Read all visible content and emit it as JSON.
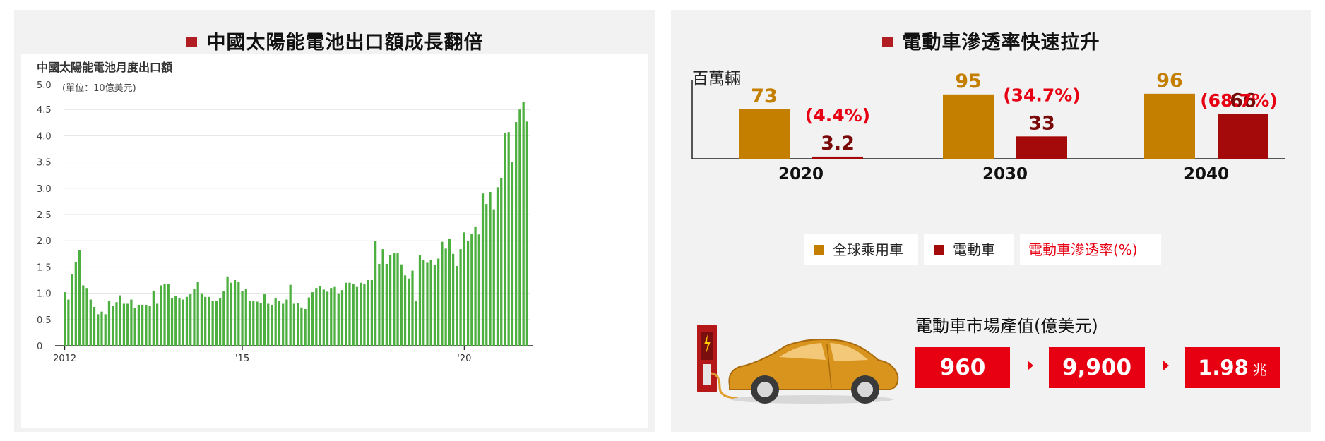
{
  "left_panel": {
    "title": "中國太陽能電池出口額成長翻倍"
  },
  "right_panel": {
    "title": "電動車滲透率快速拉升",
    "unit": "百萬輛",
    "legend": [
      "全球乘用車",
      "電動車",
      "電動車滲透率(%)"
    ],
    "market_title": "電動車市場產值(億美元)",
    "market_values": [
      "960",
      "9,900",
      "1.98"
    ],
    "market_unit_suffix": "兆"
  },
  "colors": {
    "accent_red": "#e60012",
    "dark_red": "#a50a0a",
    "gold": "#c47f00",
    "bar_green": "#4caf3f",
    "title_square": "#b01e23"
  },
  "chart_data": [
    {
      "type": "bar",
      "title": "中國太陽能電池月度出口額",
      "ylabel": "(單位：10億美元)",
      "yticks": [
        "0",
        "0.5",
        "1.0",
        "1.5",
        "2.0",
        "2.5",
        "3.0",
        "3.5",
        "4.0",
        "4.5",
        "5.0"
      ],
      "ylim": [
        0,
        5.0
      ],
      "xtick_labels": [
        "2012",
        "'15",
        "'20"
      ],
      "xtick_positions": [
        0,
        48,
        108
      ],
      "grid": true,
      "values": [
        1.02,
        0.88,
        1.37,
        1.6,
        1.82,
        1.15,
        1.1,
        0.88,
        0.74,
        0.6,
        0.65,
        0.6,
        0.85,
        0.76,
        0.83,
        0.96,
        0.8,
        0.8,
        0.88,
        0.72,
        0.78,
        0.78,
        0.78,
        0.76,
        1.05,
        0.8,
        1.15,
        1.17,
        1.17,
        0.9,
        0.95,
        0.9,
        0.88,
        0.93,
        0.98,
        1.08,
        1.22,
        1.0,
        0.93,
        0.93,
        0.85,
        0.85,
        0.9,
        1.04,
        1.32,
        1.2,
        1.25,
        1.22,
        1.04,
        1.08,
        0.86,
        0.86,
        0.84,
        0.82,
        0.98,
        0.8,
        0.78,
        0.9,
        0.86,
        0.8,
        0.88,
        1.16,
        0.8,
        0.82,
        0.73,
        0.7,
        0.92,
        1.02,
        1.1,
        1.14,
        1.07,
        1.03,
        1.1,
        1.12,
        1.0,
        1.06,
        1.2,
        1.2,
        1.17,
        1.12,
        1.2,
        1.17,
        1.25,
        1.25,
        2.0,
        1.56,
        1.84,
        1.56,
        1.73,
        1.76,
        1.76,
        1.55,
        1.34,
        1.28,
        1.43,
        0.85,
        1.72,
        1.63,
        1.58,
        1.64,
        1.54,
        1.66,
        1.98,
        1.85,
        2.03,
        1.75,
        1.52,
        1.84,
        2.16,
        2.0,
        2.13,
        2.26,
        2.12,
        2.9,
        2.7,
        2.93,
        2.6,
        3.02,
        3.2,
        4.05,
        4.07,
        3.5,
        4.26,
        4.5,
        4.65,
        4.27
      ]
    },
    {
      "type": "bar",
      "title": "電動車滲透率快速拉升",
      "ylabel": "百萬輛",
      "categories": [
        "2020",
        "2030",
        "2040"
      ],
      "series": [
        {
          "name": "全球乘用車",
          "values": [
            73,
            95,
            96
          ]
        },
        {
          "name": "電動車",
          "values": [
            3.2,
            33,
            66
          ]
        }
      ],
      "annotations": [
        "(4.4%)",
        "(34.7%)",
        "(68.7%)"
      ],
      "value_labels": {
        "全球乘用車": [
          "73",
          "95",
          "96"
        ],
        "電動車": [
          "3.2",
          "33",
          "66"
        ]
      }
    }
  ]
}
